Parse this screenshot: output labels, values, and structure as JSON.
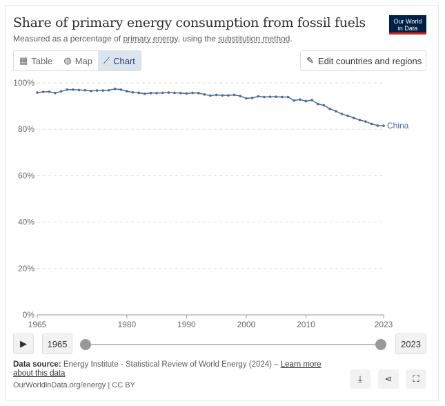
{
  "header": {
    "title": "Share of primary energy consumption from fossil fuels",
    "subtitle_pre": "Measured as a percentage of ",
    "subtitle_link1": "primary energy",
    "subtitle_mid": ", using the ",
    "subtitle_link2": "substitution method",
    "subtitle_post": ".",
    "logo": "Our World in Data"
  },
  "tabs": [
    {
      "label": "Table",
      "icon": "table-icon"
    },
    {
      "label": "Map",
      "icon": "globe-icon"
    },
    {
      "label": "Chart",
      "icon": "line-chart-icon",
      "active": true
    }
  ],
  "edit_button": {
    "label": "Edit countries and regions",
    "icon": "pencil-icon"
  },
  "timeline": {
    "start": "1965",
    "end": "2023"
  },
  "footer": {
    "source_label": "Data source:",
    "source": " Energy Institute - Statistical Review of World Energy (2024) – ",
    "learn_more": "Learn more about this data",
    "credit": "OurWorldinData.org/energy | CC BY"
  },
  "colors": {
    "line": "#4c6a9c",
    "logo_bg": "#002147",
    "logo_accent": "#ce261e"
  },
  "chart_data": {
    "type": "line",
    "title": "Share of primary energy consumption from fossil fuels",
    "xlim": [
      1965,
      2023
    ],
    "ylim": [
      0,
      100
    ],
    "x_ticks": [
      1965,
      1980,
      1990,
      2000,
      2010,
      2023
    ],
    "y_ticks": [
      "0%",
      "20%",
      "40%",
      "60%",
      "80%",
      "100%"
    ],
    "grid": "horizontal dashed",
    "series": [
      {
        "name": "China",
        "x": [
          1965,
          1966,
          1967,
          1968,
          1969,
          1970,
          1971,
          1972,
          1973,
          1974,
          1975,
          1976,
          1977,
          1978,
          1979,
          1980,
          1981,
          1982,
          1983,
          1984,
          1985,
          1986,
          1987,
          1988,
          1989,
          1990,
          1991,
          1992,
          1993,
          1994,
          1995,
          1996,
          1997,
          1998,
          1999,
          2000,
          2001,
          2002,
          2003,
          2004,
          2005,
          2006,
          2007,
          2008,
          2009,
          2010,
          2011,
          2012,
          2013,
          2014,
          2015,
          2016,
          2017,
          2018,
          2019,
          2020,
          2021,
          2022,
          2023
        ],
        "values": [
          95.8,
          96.1,
          96.2,
          95.6,
          96.3,
          97.1,
          97.1,
          96.9,
          96.8,
          96.5,
          96.7,
          96.7,
          96.8,
          97.4,
          97.1,
          96.4,
          95.9,
          95.7,
          95.3,
          95.6,
          95.6,
          95.7,
          95.8,
          95.7,
          95.6,
          95.4,
          95.7,
          95.6,
          95.0,
          94.5,
          94.8,
          94.6,
          94.6,
          94.8,
          94.3,
          93.3,
          93.5,
          94.2,
          93.9,
          94.0,
          94.0,
          93.9,
          93.9,
          92.4,
          92.8,
          92.1,
          92.6,
          90.9,
          90.3,
          88.8,
          87.8,
          86.6,
          85.8,
          84.9,
          84.0,
          83.3,
          82.3,
          81.6,
          81.5
        ]
      }
    ]
  }
}
